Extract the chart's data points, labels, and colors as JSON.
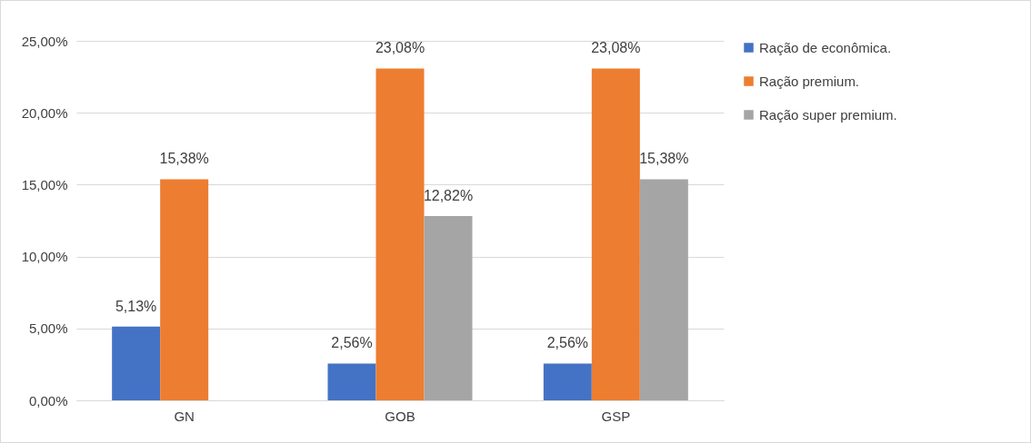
{
  "chart_data": {
    "type": "bar",
    "categories": [
      "GN",
      "GOB",
      "GSP"
    ],
    "series": [
      {
        "name": "Ração de econômica.",
        "color": "#4472c4",
        "values": [
          5.13,
          2.56,
          2.56
        ],
        "value_labels": [
          "5,13%",
          "2,56%",
          "2,56%"
        ]
      },
      {
        "name": "Ração premium.",
        "color": "#ed7d31",
        "values": [
          15.38,
          23.08,
          23.08
        ],
        "value_labels": [
          "15,38%",
          "23,08%",
          "23,08%"
        ]
      },
      {
        "name": "Ração super premium.",
        "color": "#a5a5a5",
        "values": [
          null,
          12.82,
          15.38
        ],
        "value_labels": [
          null,
          "12,82%",
          "15,38%"
        ]
      }
    ],
    "ylim": [
      0,
      25
    ],
    "yticks": [
      {
        "value": 0,
        "label": "0,00%"
      },
      {
        "value": 5,
        "label": "5,00%"
      },
      {
        "value": 10,
        "label": "10,00%"
      },
      {
        "value": 15,
        "label": "15,00%"
      },
      {
        "value": 20,
        "label": "20,00%"
      },
      {
        "value": 25,
        "label": "25,00%"
      }
    ],
    "grid": "y",
    "legend": "right"
  }
}
